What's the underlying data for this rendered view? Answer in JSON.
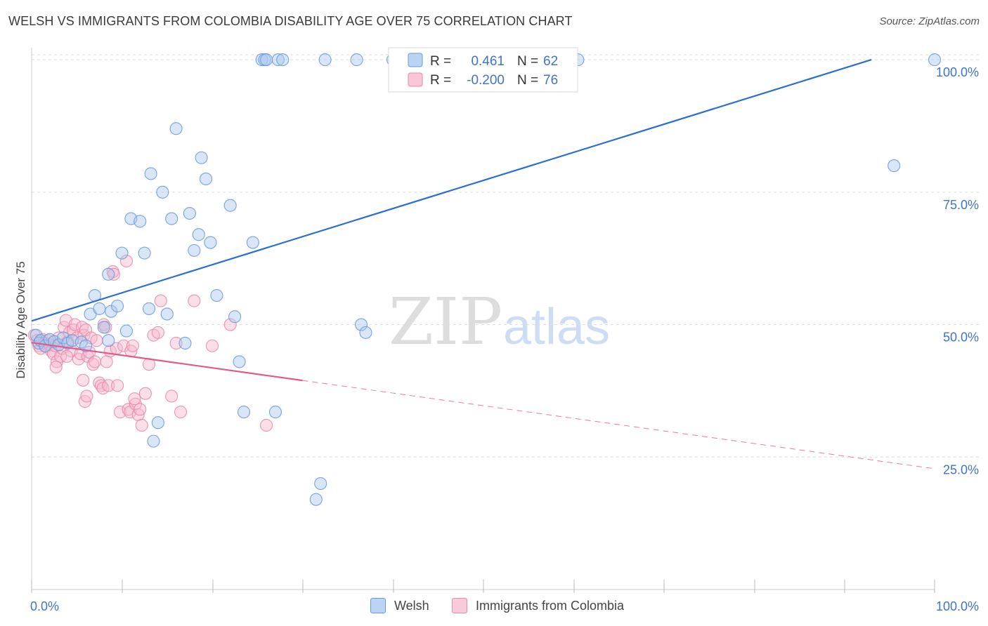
{
  "header": {
    "title": "WELSH VS IMMIGRANTS FROM COLOMBIA DISABILITY AGE OVER 75 CORRELATION CHART",
    "source": "Source: ZipAtlas.com"
  },
  "watermark": {
    "zip": "ZIP",
    "atlas": "atlas"
  },
  "colors": {
    "welsh_fill": "#a9c8f0",
    "welsh_stroke": "#6a9ad8",
    "welsh_line": "#2b6fd0",
    "colombia_fill": "#f6b8cc",
    "colombia_stroke": "#e98aa8",
    "colombia_line": "#e05b8c",
    "tick_text": "#3f74c9",
    "grid": "#dcdcdc"
  },
  "stats_legend": {
    "r_label": "R =",
    "n_label": "N =",
    "rows": [
      {
        "r": "0.461",
        "n": "62"
      },
      {
        "r": "-0.200",
        "n": "76"
      }
    ]
  },
  "chart_data": {
    "type": "scatter",
    "title": "WELSH VS IMMIGRANTS FROM COLOMBIA DISABILITY AGE OVER 75 CORRELATION CHART",
    "xlabel": "",
    "ylabel": "Disability Age Over 75",
    "xlim": [
      0,
      100
    ],
    "ylim": [
      0,
      102
    ],
    "x_tick_labels": [
      "0.0%",
      "100.0%"
    ],
    "y_ticks": [
      25,
      50,
      75,
      100
    ],
    "y_tick_labels": [
      "25.0%",
      "50.0%",
      "75.0%",
      "100.0%"
    ],
    "grid": true,
    "legend": "bottom",
    "series": [
      {
        "name": "Welsh",
        "r": 0.461,
        "n": 62,
        "trend": {
          "x0": 0,
          "y0": 50.7,
          "x1": 93,
          "y1": 100,
          "dashed_from": null
        },
        "points": [
          [
            0.5,
            48.0
          ],
          [
            0.8,
            46.5
          ],
          [
            1.0,
            47.0
          ],
          [
            1.5,
            46.0
          ],
          [
            2.0,
            47.2
          ],
          [
            2.5,
            46.8
          ],
          [
            3.0,
            46.2
          ],
          [
            3.5,
            47.5
          ],
          [
            4.0,
            46.5
          ],
          [
            4.5,
            47.0
          ],
          [
            5.5,
            46.7
          ],
          [
            6.0,
            46.0
          ],
          [
            6.5,
            52.0
          ],
          [
            7.0,
            55.5
          ],
          [
            7.5,
            53.0
          ],
          [
            8.0,
            49.5
          ],
          [
            8.5,
            59.5
          ],
          [
            8.5,
            47.0
          ],
          [
            8.8,
            52.5
          ],
          [
            9.5,
            53.5
          ],
          [
            10.0,
            63.5
          ],
          [
            10.5,
            48.8
          ],
          [
            11.0,
            70.0
          ],
          [
            12.0,
            69.5
          ],
          [
            12.5,
            63.5
          ],
          [
            13.0,
            53.0
          ],
          [
            13.2,
            78.5
          ],
          [
            14.0,
            31.5
          ],
          [
            13.5,
            28.0
          ],
          [
            14.5,
            75.0
          ],
          [
            15.0,
            52.0
          ],
          [
            15.5,
            70.0
          ],
          [
            16.0,
            87.0
          ],
          [
            17.0,
            46.5
          ],
          [
            17.5,
            71.0
          ],
          [
            18.0,
            64.0
          ],
          [
            18.5,
            67.0
          ],
          [
            18.8,
            81.5
          ],
          [
            19.3,
            77.5
          ],
          [
            19.8,
            65.5
          ],
          [
            20.5,
            55.5
          ],
          [
            22.0,
            72.5
          ],
          [
            22.5,
            51.5
          ],
          [
            23.0,
            43.0
          ],
          [
            23.5,
            33.5
          ],
          [
            24.5,
            65.5
          ],
          [
            25.5,
            100.0
          ],
          [
            25.8,
            100.0
          ],
          [
            26.0,
            100.0
          ],
          [
            27.0,
            33.5
          ],
          [
            27.3,
            100.0
          ],
          [
            27.8,
            100.0
          ],
          [
            31.5,
            17.0
          ],
          [
            32.0,
            20.0
          ],
          [
            32.5,
            100.0
          ],
          [
            36.0,
            100.0
          ],
          [
            36.5,
            50.0
          ],
          [
            37.0,
            48.5
          ],
          [
            40.0,
            100.0
          ],
          [
            60.5,
            100.0
          ],
          [
            95.5,
            80.0
          ],
          [
            100.0,
            100.0
          ]
        ]
      },
      {
        "name": "Immigrants from Colombia",
        "r": -0.2,
        "n": 76,
        "trend": {
          "x0": 0,
          "y0": 46.6,
          "x1": 100,
          "y1": 22.8,
          "solid_to": 30
        },
        "points": [
          [
            0.3,
            48.0
          ],
          [
            0.6,
            47.0
          ],
          [
            0.8,
            46.0
          ],
          [
            1.0,
            45.5
          ],
          [
            1.2,
            47.2
          ],
          [
            1.4,
            46.5
          ],
          [
            1.6,
            45.8
          ],
          [
            1.8,
            47.0
          ],
          [
            2.0,
            46.2
          ],
          [
            2.2,
            45.0
          ],
          [
            2.4,
            44.5
          ],
          [
            2.6,
            46.0
          ],
          [
            2.8,
            43.0
          ],
          [
            3.0,
            47.5
          ],
          [
            3.2,
            44.0
          ],
          [
            3.4,
            45.5
          ],
          [
            3.6,
            49.5
          ],
          [
            3.8,
            50.8
          ],
          [
            4.0,
            46.8
          ],
          [
            4.2,
            48.5
          ],
          [
            4.4,
            45.0
          ],
          [
            4.6,
            49.0
          ],
          [
            4.8,
            50.0
          ],
          [
            5.0,
            47.5
          ],
          [
            5.2,
            43.5
          ],
          [
            5.4,
            44.5
          ],
          [
            5.6,
            49.5
          ],
          [
            5.8,
            48.0
          ],
          [
            6.0,
            49.0
          ],
          [
            6.2,
            44.0
          ],
          [
            6.4,
            44.8
          ],
          [
            5.7,
            39.5
          ],
          [
            5.9,
            35.5
          ],
          [
            6.1,
            36.5
          ],
          [
            6.6,
            47.5
          ],
          [
            6.8,
            42.5
          ],
          [
            7.0,
            43.0
          ],
          [
            7.2,
            47.0
          ],
          [
            7.5,
            39.0
          ],
          [
            7.7,
            38.5
          ],
          [
            7.9,
            38.0
          ],
          [
            8.0,
            50.0
          ],
          [
            8.2,
            49.5
          ],
          [
            8.3,
            43.0
          ],
          [
            8.5,
            38.5
          ],
          [
            8.7,
            45.0
          ],
          [
            9.0,
            60.0
          ],
          [
            9.1,
            59.5
          ],
          [
            9.4,
            45.5
          ],
          [
            9.5,
            38.5
          ],
          [
            9.8,
            33.5
          ],
          [
            10.2,
            46.0
          ],
          [
            10.5,
            62.0
          ],
          [
            10.7,
            34.0
          ],
          [
            10.9,
            33.5
          ],
          [
            11.0,
            45.0
          ],
          [
            11.2,
            46.0
          ],
          [
            11.5,
            35.0
          ],
          [
            11.8,
            33.0
          ],
          [
            12.0,
            34.0
          ],
          [
            12.2,
            31.0
          ],
          [
            13.0,
            42.5
          ],
          [
            13.5,
            48.0
          ],
          [
            14.0,
            48.5
          ],
          [
            14.3,
            54.5
          ],
          [
            15.5,
            36.5
          ],
          [
            16.5,
            33.5
          ],
          [
            18.0,
            54.5
          ],
          [
            20.0,
            46.0
          ],
          [
            22.0,
            50.0
          ],
          [
            26.0,
            31.0
          ],
          [
            16.0,
            46.5
          ],
          [
            12.6,
            37.0
          ],
          [
            11.4,
            36.0
          ],
          [
            2.7,
            42.0
          ],
          [
            3.9,
            44.0
          ]
        ]
      }
    ]
  },
  "bottom_legend": {
    "items": [
      {
        "label": "Welsh"
      },
      {
        "label": "Immigrants from Colombia"
      }
    ]
  }
}
